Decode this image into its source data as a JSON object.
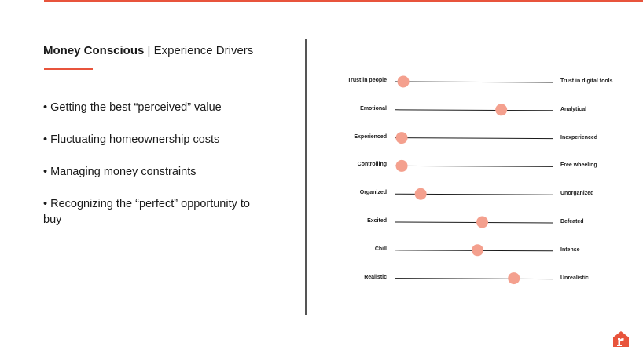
{
  "header": {
    "title_bold": "Money Conscious",
    "title_separator": " | ",
    "title_rest": "Experience Drivers"
  },
  "bullets": [
    "• Getting the best “perceived” value",
    "• Fluctuating homeownership costs",
    "• Managing money constraints",
    "• Recognizing the “perfect” opportunity to buy"
  ],
  "scales": [
    {
      "left": "Trust in people",
      "right": "Trust in digital tools",
      "position": 0.05
    },
    {
      "left": "Emotional",
      "right": "Analytical",
      "position": 0.67
    },
    {
      "left": "Experienced",
      "right": "Inexperienced",
      "position": 0.04
    },
    {
      "left": "Controlling",
      "right": "Free wheeling",
      "position": 0.04
    },
    {
      "left": "Organized",
      "right": "Unorganized",
      "position": 0.16
    },
    {
      "left": "Excited",
      "right": "Defeated",
      "position": 0.55
    },
    {
      "left": "Chill",
      "right": "Intense",
      "position": 0.52
    },
    {
      "left": "Realistic",
      "right": "Unrealistic",
      "position": 0.75
    }
  ],
  "colors": {
    "accent": "#e8543c",
    "marker": "#f4a08e",
    "divider": "#555555",
    "line": "#1a1a1a"
  },
  "logo": {
    "icon": "house-r-logo-icon"
  }
}
